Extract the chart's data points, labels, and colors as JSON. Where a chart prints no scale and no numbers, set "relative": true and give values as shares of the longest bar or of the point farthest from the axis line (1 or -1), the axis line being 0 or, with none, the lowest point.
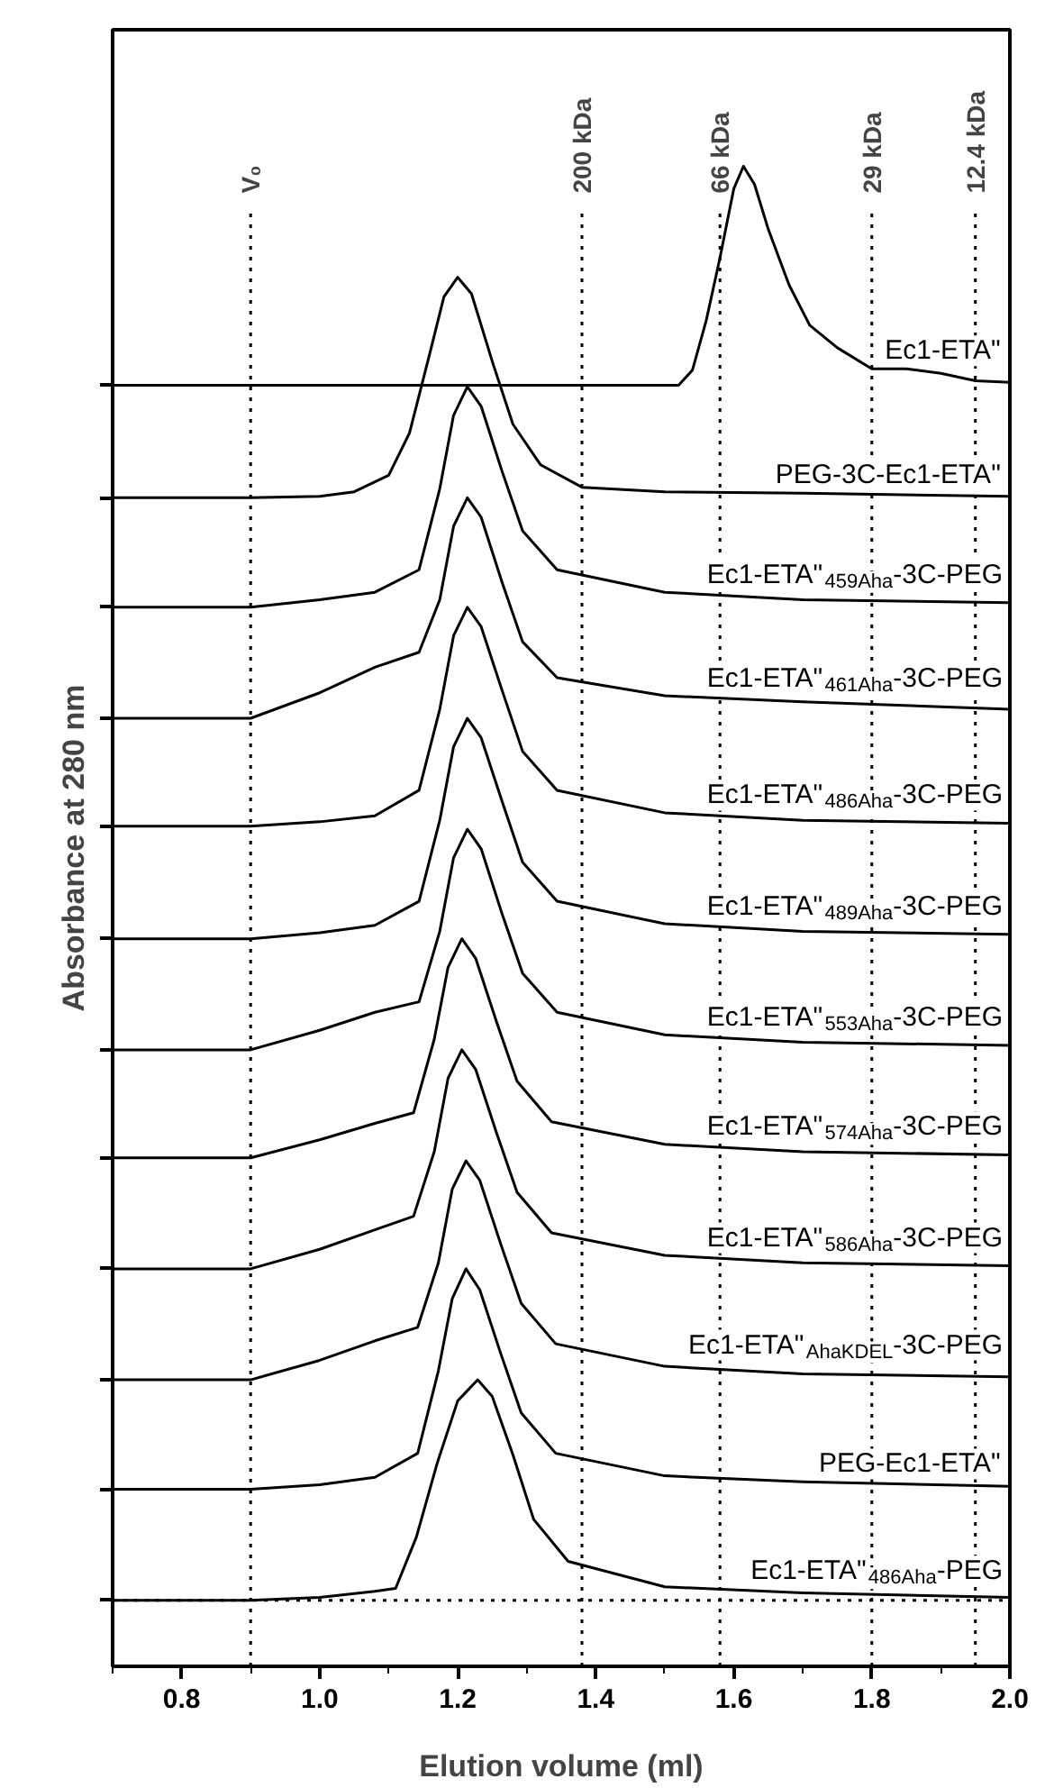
{
  "chart_data": {
    "type": "line",
    "relative": true,
    "xlabel": "Elution volume (ml)",
    "ylabel": "Absorbance at 280 nm",
    "xlim": [
      0.7,
      2.0
    ],
    "xticks": [
      0.8,
      {
        "value": 1.0,
        "label": "1.0"
      },
      1.2,
      1.4,
      1.6,
      1.8,
      {
        "value": 2.0,
        "label": "2.0"
      }
    ],
    "legend": false,
    "grid": false,
    "marker": "none",
    "line_style": "solid",
    "tick_labels": "x",
    "ref_lines": [
      {
        "axis": "x",
        "value": 0.9,
        "label": "V₀",
        "line_style": "dotted"
      },
      {
        "axis": "x",
        "value": 1.38,
        "label": "200 kDa",
        "line_style": "dotted"
      },
      {
        "axis": "x",
        "value": 1.58,
        "label": "66 kDa",
        "line_style": "dotted"
      },
      {
        "axis": "x",
        "value": 1.8,
        "label": "29 kDa",
        "line_style": "dotted"
      },
      {
        "axis": "x",
        "value": 1.95,
        "label": "12.4 kDa",
        "line_style": "dotted"
      },
      {
        "axis": "y",
        "value": 0.044,
        "line_style": "dotted"
      }
    ],
    "series": [
      {
        "name": "Ec1-ETA\"",
        "color": "#000000",
        "x": [
          0.7,
          1.0,
          1.3,
          1.52,
          1.54,
          1.56,
          1.58,
          1.6,
          1.614,
          1.63,
          1.65,
          1.68,
          1.71,
          1.75,
          1.8,
          1.85,
          1.9,
          1.95,
          2.0
        ],
        "values": [
          0.854,
          0.854,
          0.854,
          0.854,
          0.864,
          0.897,
          0.939,
          0.985,
          1.0,
          0.988,
          0.958,
          0.921,
          0.894,
          0.879,
          0.865,
          0.865,
          0.862,
          0.857,
          0.856
        ]
      },
      {
        "name": "PEG-3C-Ec1-ETA\"",
        "color": "#000000",
        "x": [
          0.7,
          0.9,
          1.0,
          1.05,
          1.1,
          1.13,
          1.16,
          1.18,
          1.2,
          1.22,
          1.25,
          1.28,
          1.32,
          1.38,
          1.5,
          1.7,
          2.0
        ],
        "values": [
          0.779,
          0.779,
          0.78,
          0.783,
          0.794,
          0.822,
          0.876,
          0.913,
          0.926,
          0.915,
          0.87,
          0.828,
          0.801,
          0.786,
          0.783,
          0.782,
          0.78
        ]
      },
      {
        "name": "Ec1-ETA\"$_{459Aha}$-3C-PEG",
        "color": "#000000",
        "x": [
          0.7,
          0.9,
          1.0,
          1.08,
          1.144,
          1.174,
          1.194,
          1.214,
          1.234,
          1.264,
          1.294,
          1.344,
          1.5,
          1.7,
          2.0
        ],
        "values": [
          0.706,
          0.706,
          0.711,
          0.716,
          0.731,
          0.785,
          0.834,
          0.853,
          0.84,
          0.797,
          0.757,
          0.731,
          0.716,
          0.711,
          0.709
        ]
      },
      {
        "name": "Ec1-ETA\"$_{461Aha}$-3C-PEG",
        "color": "#000000",
        "x": [
          0.7,
          0.9,
          1.0,
          1.08,
          1.144,
          1.174,
          1.194,
          1.214,
          1.234,
          1.264,
          1.294,
          1.344,
          1.5,
          1.7,
          2.0
        ],
        "values": [
          0.632,
          0.632,
          0.649,
          0.666,
          0.676,
          0.711,
          0.76,
          0.779,
          0.766,
          0.723,
          0.683,
          0.659,
          0.647,
          0.643,
          0.638
        ]
      },
      {
        "name": "Ec1-ETA\"$_{486Aha}$-3C-PEG",
        "color": "#000000",
        "x": [
          0.7,
          0.9,
          1.0,
          1.08,
          1.144,
          1.174,
          1.194,
          1.214,
          1.234,
          1.264,
          1.294,
          1.344,
          1.5,
          1.7,
          2.0
        ],
        "values": [
          0.56,
          0.56,
          0.563,
          0.567,
          0.584,
          0.638,
          0.687,
          0.706,
          0.693,
          0.651,
          0.61,
          0.584,
          0.569,
          0.564,
          0.562
        ]
      },
      {
        "name": "Ec1-ETA\"$_{489Aha}$-3C-PEG",
        "color": "#000000",
        "x": [
          0.7,
          0.9,
          1.0,
          1.08,
          1.144,
          1.174,
          1.194,
          1.214,
          1.234,
          1.264,
          1.294,
          1.344,
          1.5,
          1.7,
          2.0
        ],
        "values": [
          0.485,
          0.485,
          0.489,
          0.494,
          0.51,
          0.564,
          0.613,
          0.632,
          0.619,
          0.577,
          0.536,
          0.51,
          0.495,
          0.49,
          0.488
        ]
      },
      {
        "name": "Ec1-ETA\"$_{553Aha}$-3C-PEG",
        "color": "#000000",
        "x": [
          0.7,
          0.9,
          1.0,
          1.08,
          1.144,
          1.174,
          1.194,
          1.214,
          1.234,
          1.264,
          1.294,
          1.344,
          1.5,
          1.7,
          2.0
        ],
        "values": [
          0.411,
          0.411,
          0.424,
          0.436,
          0.443,
          0.49,
          0.539,
          0.558,
          0.545,
          0.502,
          0.462,
          0.436,
          0.421,
          0.416,
          0.414
        ]
      },
      {
        "name": "Ec1-ETA\"$_{574Aha}$-3C-PEG",
        "color": "#000000",
        "x": [
          0.7,
          0.9,
          1.0,
          1.08,
          1.136,
          1.166,
          1.186,
          1.206,
          1.226,
          1.256,
          1.286,
          1.336,
          1.5,
          1.7,
          2.0
        ],
        "values": [
          0.339,
          0.339,
          0.351,
          0.362,
          0.369,
          0.418,
          0.466,
          0.485,
          0.472,
          0.43,
          0.39,
          0.363,
          0.348,
          0.343,
          0.341
        ]
      },
      {
        "name": "Ec1-ETA\"$_{586Aha}$-3C-PEG",
        "color": "#000000",
        "x": [
          0.7,
          0.9,
          1.0,
          1.08,
          1.136,
          1.166,
          1.186,
          1.206,
          1.226,
          1.256,
          1.286,
          1.336,
          1.5,
          1.7,
          2.0
        ],
        "values": [
          0.265,
          0.265,
          0.278,
          0.291,
          0.3,
          0.343,
          0.392,
          0.411,
          0.398,
          0.356,
          0.316,
          0.289,
          0.274,
          0.269,
          0.267
        ]
      },
      {
        "name": "Ec1-ETA\"$_{AhaKDEL}$-3C-PEG",
        "color": "#000000",
        "x": [
          0.7,
          0.9,
          1.0,
          1.08,
          1.142,
          1.172,
          1.192,
          1.212,
          1.232,
          1.262,
          1.292,
          1.342,
          1.5,
          1.7,
          2.0
        ],
        "values": [
          0.191,
          0.191,
          0.204,
          0.217,
          0.226,
          0.269,
          0.318,
          0.337,
          0.324,
          0.282,
          0.242,
          0.215,
          0.2,
          0.195,
          0.193
        ]
      },
      {
        "name": "PEG-Ec1-ETA\"",
        "color": "#000000",
        "x": [
          0.7,
          0.9,
          1.0,
          1.08,
          1.142,
          1.172,
          1.192,
          1.212,
          1.232,
          1.262,
          1.292,
          1.342,
          1.5,
          1.7,
          2.0
        ],
        "values": [
          0.118,
          0.118,
          0.121,
          0.126,
          0.142,
          0.197,
          0.245,
          0.265,
          0.251,
          0.209,
          0.169,
          0.142,
          0.127,
          0.123,
          0.12
        ]
      },
      {
        "name": "Ec1-ETA\"$_{486Aha}$-PEG",
        "color": "#000000",
        "x": [
          0.7,
          0.9,
          1.0,
          1.08,
          1.11,
          1.14,
          1.17,
          1.2,
          1.229,
          1.25,
          1.28,
          1.31,
          1.36,
          1.5,
          1.7,
          2.0
        ],
        "values": [
          0.044,
          0.044,
          0.046,
          0.05,
          0.052,
          0.086,
          0.135,
          0.177,
          0.191,
          0.18,
          0.141,
          0.098,
          0.07,
          0.053,
          0.049,
          0.046
        ]
      }
    ]
  }
}
